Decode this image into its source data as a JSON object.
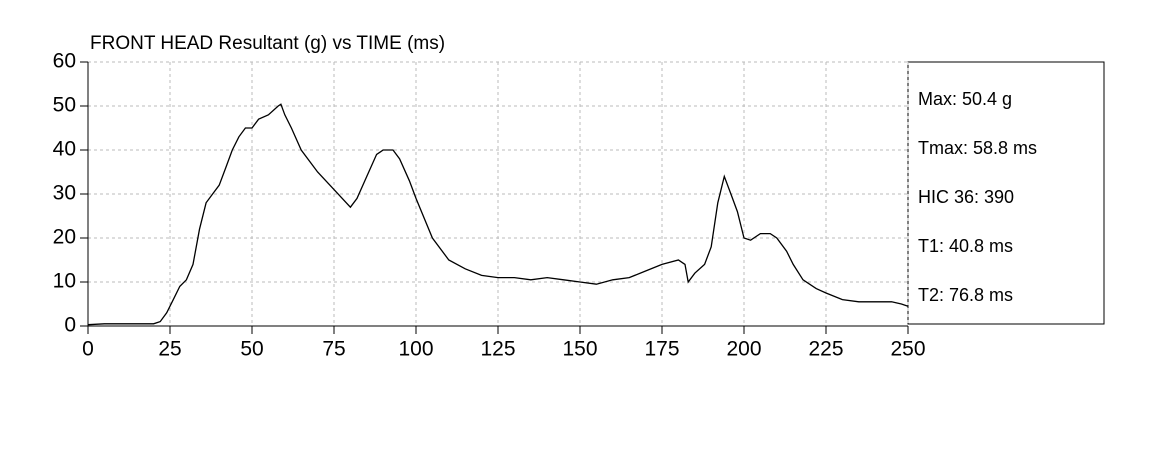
{
  "chart_data": {
    "type": "line",
    "title": "FRONT HEAD Resultant (g) vs TIME (ms)",
    "x": [
      0,
      5,
      10,
      15,
      20,
      22,
      24,
      26,
      28,
      30,
      32,
      34,
      36,
      38,
      40,
      42,
      44,
      46,
      48,
      50,
      52,
      55,
      58,
      58.8,
      60,
      62,
      65,
      70,
      75,
      80,
      82,
      85,
      88,
      90,
      93,
      95,
      98,
      100,
      105,
      110,
      115,
      120,
      125,
      130,
      135,
      140,
      145,
      150,
      155,
      160,
      165,
      170,
      175,
      180,
      182,
      183,
      185,
      188,
      190,
      192,
      194,
      196,
      198,
      200,
      202,
      205,
      208,
      210,
      213,
      215,
      218,
      222,
      225,
      230,
      235,
      240,
      245,
      248,
      250
    ],
    "series": [
      {
        "name": "FRONT HEAD Resultant",
        "color": "#000000",
        "values": [
          0.3,
          0.5,
          0.5,
          0.5,
          0.5,
          1,
          3,
          6,
          9,
          10.5,
          14,
          22,
          28,
          30,
          32,
          36,
          40,
          43,
          45,
          45,
          47,
          48,
          50,
          50.4,
          48,
          45,
          40,
          35,
          31,
          27,
          29,
          34,
          39,
          40,
          40,
          38,
          33,
          29,
          20,
          15,
          13,
          11.5,
          11,
          11,
          10.5,
          11,
          10.5,
          10,
          9.5,
          10.5,
          11,
          12.5,
          14,
          15,
          14,
          10,
          12,
          14,
          18,
          28,
          34,
          30,
          26,
          20,
          19.5,
          21,
          21,
          20,
          17,
          14,
          10.5,
          8.5,
          7.5,
          6,
          5.5,
          5.5,
          5.5,
          5,
          4.5
        ]
      }
    ],
    "xlim": [
      0,
      250
    ],
    "xticks": [
      0,
      25,
      50,
      75,
      100,
      125,
      150,
      175,
      200,
      225,
      250
    ],
    "ylim": [
      0,
      60
    ],
    "yticks": [
      0,
      10,
      20,
      30,
      40,
      50,
      60
    ],
    "grid": true,
    "annotations": [
      "Max: 50.4 g",
      "Tmax: 58.8 ms",
      "HIC 36: 390",
      "T1: 40.8 ms",
      "T2: 76.8 ms"
    ]
  }
}
